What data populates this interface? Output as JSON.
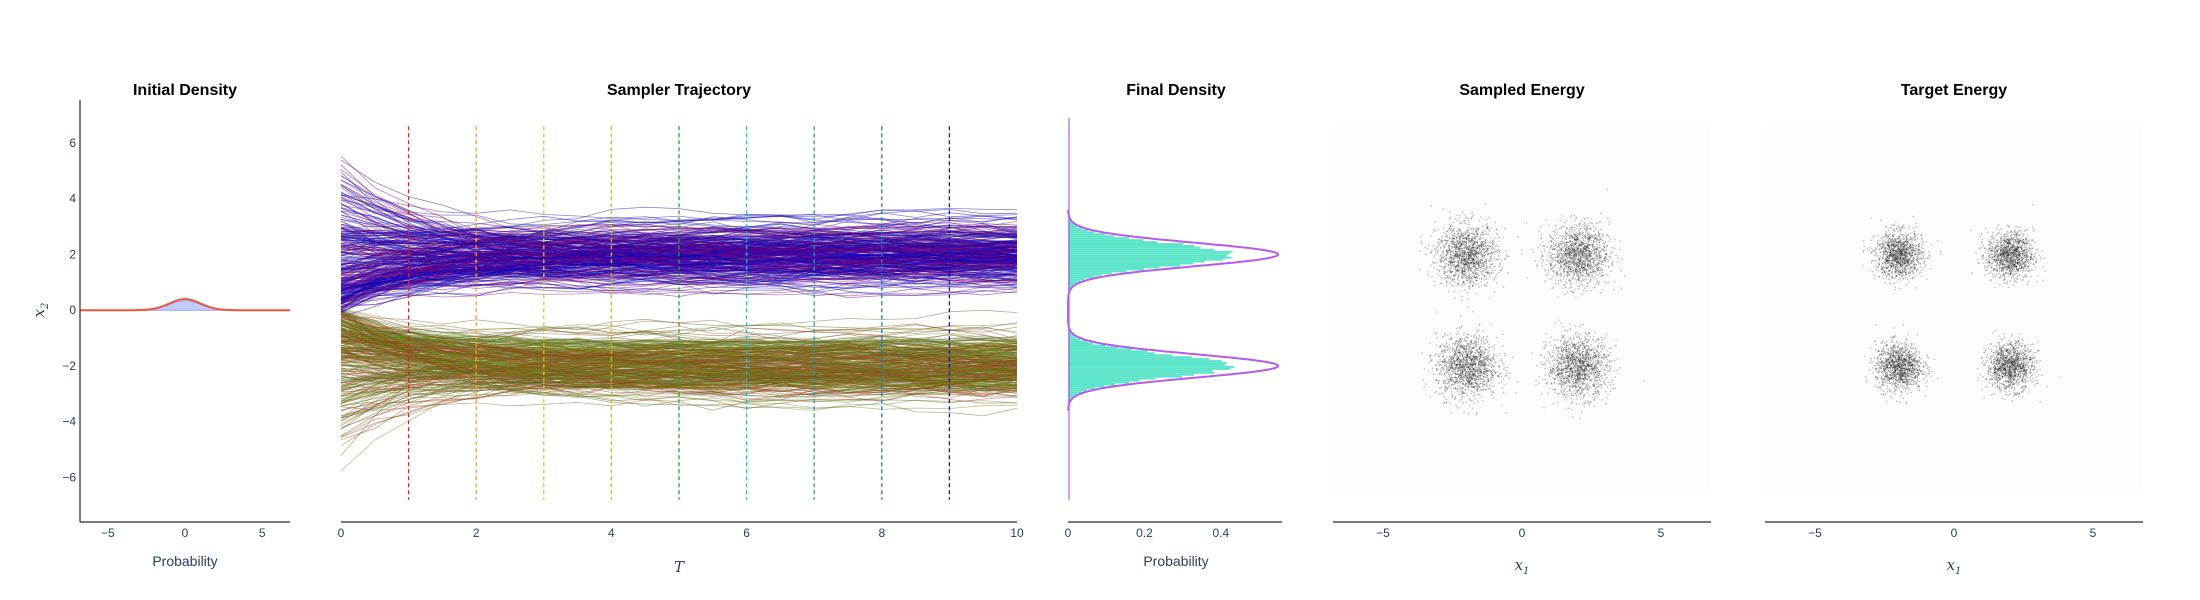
{
  "chart_data": [
    {
      "type": "area",
      "title": "Initial Density",
      "xlabel": "Probability",
      "ylabel": "x",
      "ylabel_subscript": "2",
      "xlim": [
        -6.8,
        6.8
      ],
      "ylim": [
        -7.6,
        7.4
      ],
      "x_ticks": [
        -5,
        0,
        5
      ],
      "y_ticks": [
        -6,
        -4,
        -2,
        0,
        2,
        4,
        6
      ],
      "x_tick_labels": [
        "−5",
        "0",
        "5"
      ],
      "y_tick_labels": [
        "−6",
        "−4",
        "−2",
        "0",
        "2",
        "4",
        "6"
      ],
      "series": [
        {
          "kind": "histogram",
          "color": "#8fa3ff",
          "mean": 0,
          "std": 1,
          "peak": 0.34
        },
        {
          "kind": "density_curve",
          "color": "#ef553b",
          "mean": 0,
          "std": 1,
          "peak": 0.4
        }
      ]
    },
    {
      "type": "line",
      "title": "Sampler Trajectory",
      "xlabel": "T",
      "xlim": [
        0,
        10
      ],
      "ylim": [
        -7.6,
        7.4
      ],
      "x_ticks": [
        0,
        2,
        4,
        6,
        8,
        10
      ],
      "x_tick_labels": [
        "0",
        "2",
        "4",
        "6",
        "8",
        "10"
      ],
      "num_trajectories": 600,
      "start_distribution": {
        "mean": 0,
        "std": 2.5,
        "min": -5.8,
        "max": 6.5
      },
      "end_modes": [
        2,
        -2
      ],
      "upper_colors": [
        "#4b0082",
        "#1a0aa8",
        "#800080",
        "#0000cd"
      ],
      "lower_colors": [
        "#556b2f",
        "#6b8e23",
        "#8b4513",
        "#a0522d",
        "#6b6b00"
      ],
      "vlines": [
        {
          "x": 1,
          "color": "#d62728"
        },
        {
          "x": 2,
          "color": "#ff9f1c"
        },
        {
          "x": 3,
          "color": "#d4c72a"
        },
        {
          "x": 4,
          "color": "#bcbd22"
        },
        {
          "x": 5,
          "color": "#2ca02c"
        },
        {
          "x": 6,
          "color": "#17becf"
        },
        {
          "x": 7,
          "color": "#1f9bbf"
        },
        {
          "x": 8,
          "color": "#1f77b4"
        },
        {
          "x": 9,
          "color": "#0a1aa8"
        }
      ],
      "vline_range": [
        -6.8,
        6.6
      ]
    },
    {
      "type": "area",
      "title": "Final Density",
      "xlabel": "Probability",
      "xlim": [
        0,
        0.56
      ],
      "ylim": [
        -7.6,
        7.4
      ],
      "x_ticks": [
        0,
        0.2,
        0.4
      ],
      "x_tick_labels": [
        "0",
        "0.2",
        "0.4"
      ],
      "series": [
        {
          "kind": "histogram",
          "color": "#40e0c0",
          "modes": [
            2,
            -2
          ],
          "std": 0.42,
          "peak": 0.44
        },
        {
          "kind": "density_curve",
          "color": "#b45cf0",
          "modes": [
            2,
            -2
          ],
          "std": 0.42,
          "peak": 0.55
        },
        {
          "kind": "axis_line",
          "color": "#b45cf0"
        }
      ]
    },
    {
      "type": "scatter",
      "title": "Sampled Energy",
      "xlabel": "x",
      "xlabel_subscript": "1",
      "xlim": [
        -6.8,
        6.8
      ],
      "ylim": [
        -7.6,
        7.4
      ],
      "x_ticks": [
        -5,
        0,
        5
      ],
      "x_tick_labels": [
        "−5",
        "0",
        "5"
      ],
      "centers": [
        [
          -2,
          2
        ],
        [
          2,
          2
        ],
        [
          -2,
          -2
        ],
        [
          2,
          -2
        ]
      ],
      "std": 0.55,
      "points_per_cluster": 1400,
      "background": "#fdfdfb",
      "point_color": "#000000"
    },
    {
      "type": "scatter",
      "title": "Target Energy",
      "xlabel": "x",
      "xlabel_subscript": "1",
      "xlim": [
        -6.8,
        6.8
      ],
      "ylim": [
        -7.6,
        7.4
      ],
      "x_ticks": [
        -5,
        0,
        5
      ],
      "x_tick_labels": [
        "−5",
        "0",
        "5"
      ],
      "centers": [
        [
          -2,
          2
        ],
        [
          2,
          2
        ],
        [
          -2,
          -2
        ],
        [
          2,
          -2
        ]
      ],
      "std": 0.42,
      "points_per_cluster": 1200,
      "background": "#fdfdfb",
      "point_color": "#000000"
    }
  ]
}
